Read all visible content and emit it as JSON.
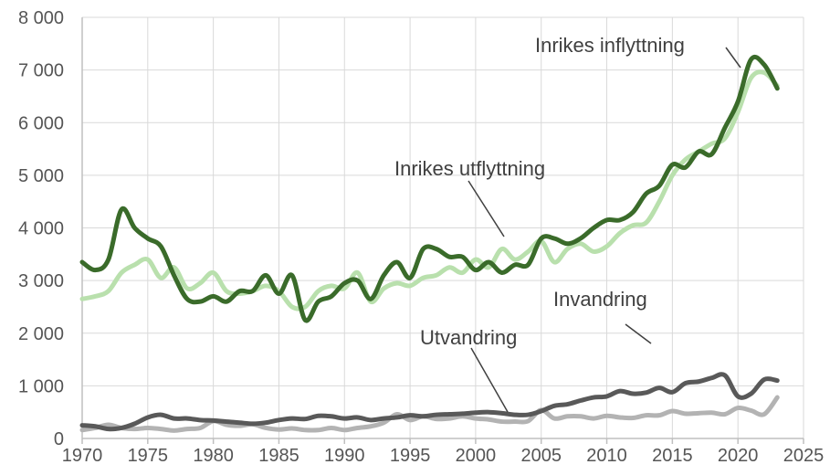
{
  "chart_data": {
    "type": "line",
    "title": "",
    "xlabel": "",
    "ylabel": "",
    "xlim": [
      1970,
      2025
    ],
    "ylim": [
      0,
      8000
    ],
    "grid": true,
    "legend": "inline labels",
    "x_ticks": [
      1970,
      1975,
      1980,
      1985,
      1990,
      1995,
      2000,
      2005,
      2010,
      2015,
      2020,
      2025
    ],
    "x_tick_labels": [
      "1970",
      "1975",
      "1980",
      "1985",
      "1990",
      "1995",
      "2000",
      "2005",
      "2010",
      "2015",
      "2020",
      "2025"
    ],
    "y_ticks": [
      0,
      1000,
      2000,
      3000,
      4000,
      5000,
      6000,
      7000,
      8000
    ],
    "y_tick_labels": [
      "0",
      "1 000",
      "2 000",
      "3 000",
      "4 000",
      "5 000",
      "6 000",
      "7 000",
      "8 000"
    ],
    "x": [
      1970,
      1971,
      1972,
      1973,
      1974,
      1975,
      1976,
      1977,
      1978,
      1979,
      1980,
      1981,
      1982,
      1983,
      1984,
      1985,
      1986,
      1987,
      1988,
      1989,
      1990,
      1991,
      1992,
      1993,
      1994,
      1995,
      1996,
      1997,
      1998,
      1999,
      2000,
      2001,
      2002,
      2003,
      2004,
      2005,
      2006,
      2007,
      2008,
      2009,
      2010,
      2011,
      2012,
      2013,
      2014,
      2015,
      2016,
      2017,
      2018,
      2019,
      2020,
      2021,
      2022,
      2023
    ],
    "series": [
      {
        "name": "Inrikes inflyttning",
        "color": "#3a6b2a",
        "values": [
          3350,
          3200,
          3400,
          4350,
          4000,
          3800,
          3650,
          3100,
          2650,
          2600,
          2700,
          2600,
          2800,
          2800,
          3100,
          2750,
          3100,
          2250,
          2600,
          2700,
          2950,
          3000,
          2650,
          3100,
          3350,
          3050,
          3600,
          3600,
          3450,
          3450,
          3200,
          3350,
          3150,
          3300,
          3300,
          3800,
          3800,
          3700,
          3800,
          4000,
          4150,
          4150,
          4300,
          4650,
          4800,
          5200,
          5150,
          5450,
          5400,
          5900,
          6400,
          7200,
          7100,
          6650
        ]
      },
      {
        "name": "Inrikes utflyttning",
        "color": "#b9e0ad",
        "values": [
          2650,
          2700,
          2800,
          3150,
          3300,
          3400,
          3050,
          3250,
          2850,
          2950,
          3150,
          2800,
          2750,
          2800,
          2900,
          2800,
          2500,
          2500,
          2800,
          2900,
          2850,
          3150,
          2600,
          2850,
          2950,
          2900,
          3050,
          3100,
          3250,
          3150,
          3400,
          3250,
          3600,
          3400,
          3550,
          3750,
          3350,
          3600,
          3700,
          3550,
          3650,
          3900,
          4050,
          4100,
          4500,
          5000,
          5300,
          5450,
          5600,
          5700,
          6200,
          6850,
          6950,
          6700
        ]
      },
      {
        "name": "Invandring",
        "color": "#595959",
        "values": [
          250,
          230,
          180,
          200,
          280,
          400,
          450,
          380,
          380,
          350,
          340,
          320,
          300,
          280,
          300,
          350,
          380,
          370,
          430,
          420,
          380,
          400,
          350,
          380,
          400,
          440,
          420,
          450,
          460,
          470,
          490,
          500,
          480,
          450,
          450,
          520,
          620,
          650,
          720,
          780,
          800,
          900,
          850,
          870,
          960,
          880,
          1050,
          1080,
          1150,
          1200,
          800,
          850,
          1120,
          1100
        ]
      },
      {
        "name": "Utvandring",
        "color": "#b3b3b3",
        "values": [
          160,
          200,
          260,
          200,
          180,
          200,
          180,
          150,
          180,
          200,
          330,
          260,
          240,
          270,
          200,
          170,
          190,
          160,
          160,
          200,
          160,
          200,
          230,
          300,
          460,
          350,
          420,
          370,
          380,
          420,
          380,
          360,
          320,
          320,
          330,
          540,
          380,
          420,
          420,
          380,
          430,
          400,
          390,
          440,
          440,
          520,
          470,
          480,
          490,
          460,
          580,
          530,
          460,
          780
        ]
      }
    ],
    "annotations": [
      "Inrikes inflyttning",
      "Inrikes utflyttning",
      "Invandring",
      "Utvandring"
    ]
  }
}
